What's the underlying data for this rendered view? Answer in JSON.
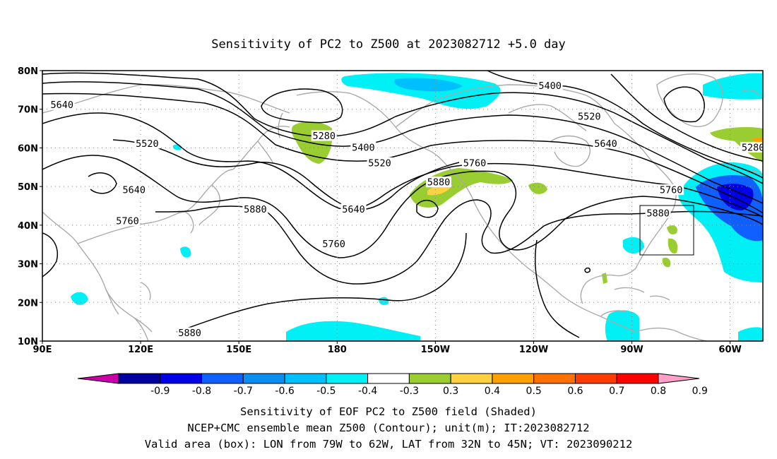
{
  "title": "Sensitivity of PC2 to Z500 at 2023082712 +5.0 day",
  "map": {
    "lat_ticks": [
      "80N",
      "70N",
      "60N",
      "50N",
      "40N",
      "30N",
      "20N",
      "10N"
    ],
    "lon_ticks": [
      "90E",
      "120E",
      "150E",
      "180",
      "150W",
      "120W",
      "90W",
      "60W"
    ],
    "grid": "dotted",
    "contour_color": "#000000",
    "coast_color": "#aaaaaa",
    "valid_box": {
      "lon_west": 79,
      "lon_east": 62,
      "lat_south": 32,
      "lat_north": 45
    }
  },
  "contour_labels": [
    {
      "text": "5640",
      "lon": 96,
      "lat": 71
    },
    {
      "text": "5520",
      "lon": 122,
      "lat": 61
    },
    {
      "text": "5640",
      "lon": 118,
      "lat": 49
    },
    {
      "text": "5760",
      "lon": 116,
      "lat": 41
    },
    {
      "text": "5880",
      "lon": 155,
      "lat": 44
    },
    {
      "text": "5880",
      "lon": 135,
      "lat": 12
    },
    {
      "text": "5280",
      "lon": 176,
      "lat": 63
    },
    {
      "text": "5400",
      "lon": 188,
      "lat": 60
    },
    {
      "text": "5520",
      "lon": 193,
      "lat": 56
    },
    {
      "text": "5640",
      "lon": 185,
      "lat": 44
    },
    {
      "text": "5760",
      "lon": 179,
      "lat": 35
    },
    {
      "text": "5880",
      "lon": 211,
      "lat": 51
    },
    {
      "text": "5760",
      "lon": 222,
      "lat": 56
    },
    {
      "text": "5400",
      "lon": 245,
      "lat": 76
    },
    {
      "text": "5520",
      "lon": 257,
      "lat": 68
    },
    {
      "text": "5640",
      "lon": 262,
      "lat": 61
    },
    {
      "text": "5760",
      "lon": 282,
      "lat": 49
    },
    {
      "text": "5880",
      "lon": 278,
      "lat": 43
    },
    {
      "text": "5280",
      "lon": 307,
      "lat": 60
    }
  ],
  "colorbar": {
    "colors": [
      "#cc00aa",
      "#0000a0",
      "#0000e6",
      "#1060ff",
      "#0a8ef0",
      "#00bfff",
      "#00f0f5",
      "#ffffff",
      "#9acd32",
      "#ffd040",
      "#ffa000",
      "#ff7000",
      "#ff3c00",
      "#ff0000",
      "#ffa0c8"
    ],
    "labels": [
      "-0.9",
      "-0.8",
      "-0.7",
      "-0.6",
      "-0.5",
      "-0.4",
      "-0.3",
      "0.3",
      "0.4",
      "0.5",
      "0.6",
      "0.7",
      "0.8",
      "0.9"
    ]
  },
  "caption": [
    "Sensitivity of EOF PC2 to Z500 field (Shaded)",
    "NCEP+CMC ensemble mean Z500 (Contour); unit(m); IT:2023082712",
    "Valid area (box): LON from 79W to 62W, LAT from 32N to 45N; VT: 2023090212"
  ]
}
